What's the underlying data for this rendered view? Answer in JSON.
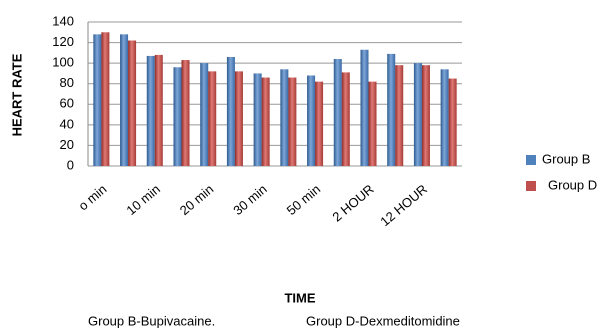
{
  "chart_data": {
    "type": "bar",
    "ylabel": "HEART RATE",
    "xlabel": "TIME",
    "categories": [
      "o min",
      null,
      "10 min",
      null,
      "20 min",
      null,
      "30 min",
      null,
      "50 min",
      null,
      "2 HOUR",
      null,
      "12 HOUR",
      null
    ],
    "series": [
      {
        "name": "Group B",
        "color": "#4f81bd",
        "values": [
          128,
          128,
          107,
          96,
          100,
          106,
          90,
          94,
          88,
          104,
          113,
          109,
          100,
          94
        ]
      },
      {
        "name": "Group D",
        "color": "#c0504d",
        "values": [
          130,
          122,
          108,
          103,
          92,
          92,
          86,
          86,
          82,
          91,
          82,
          98,
          98,
          85
        ]
      }
    ],
    "ylim": [
      0,
      140
    ],
    "yticks": [
      0,
      20,
      40,
      60,
      80,
      100,
      120,
      140
    ],
    "grid": true,
    "legend": "right",
    "notes": [
      "Group B-Bupivacaine.",
      "Group D-Dexmeditomidine"
    ]
  }
}
